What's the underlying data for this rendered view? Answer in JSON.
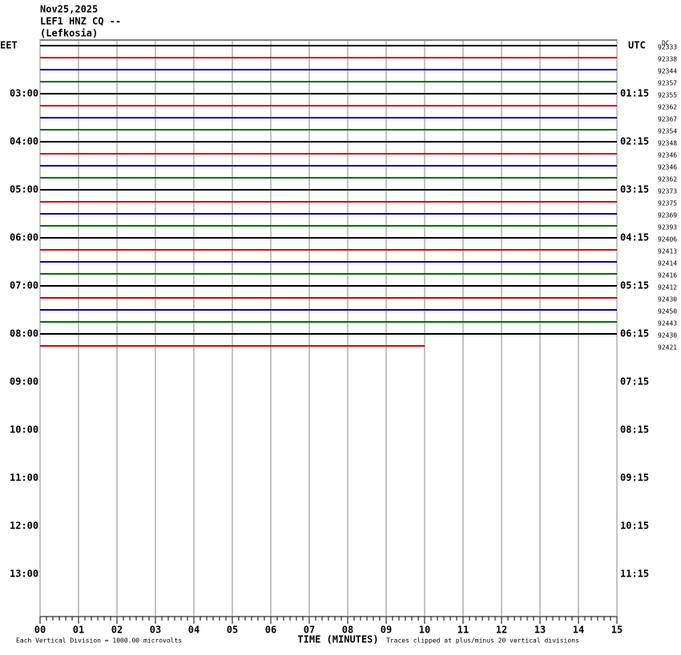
{
  "chart_data": {
    "type": "helicorder",
    "title_lines": [
      "Nov25,2025",
      "LEF1 HNZ CQ --",
      "(Lefkosia)"
    ],
    "left_axis_label": "EET",
    "right_axis_label": "UTC",
    "dc_header": "DC",
    "x_label": "TIME (MINUTES)",
    "scale_note": "Each Vertical Division = 1000.00 microvolts",
    "clip_note": "Traces clipped at plus/minus 20 vertical divisions",
    "xlim": [
      0,
      15
    ],
    "xticks": [
      {
        "value": 0,
        "label": "00"
      },
      {
        "value": 1,
        "label": "01"
      },
      {
        "value": 2,
        "label": "02"
      },
      {
        "value": 3,
        "label": "03"
      },
      {
        "value": 4,
        "label": "04"
      },
      {
        "value": 5,
        "label": "05"
      },
      {
        "value": 6,
        "label": "06"
      },
      {
        "value": 7,
        "label": "07"
      },
      {
        "value": 8,
        "label": "08"
      },
      {
        "value": 9,
        "label": "09"
      },
      10,
      11,
      12,
      13,
      14,
      15
    ],
    "local_times": [
      "03:00",
      "04:00",
      "05:00",
      "06:00",
      "07:00",
      "08:00",
      "09:00",
      "10:00",
      "11:00",
      "12:00",
      "13:00"
    ],
    "utc_times": [
      "01:15",
      "02:15",
      "03:15",
      "04:15",
      "05:15",
      "06:15",
      "07:15",
      "08:15",
      "09:15",
      "10:15",
      "11:15"
    ],
    "trace_colors": [
      "#000000",
      "#e00000",
      "#0000c0",
      "#007000"
    ],
    "dc_values": [
      92333,
      92338,
      92344,
      92357,
      92355,
      92362,
      92367,
      92354,
      92348,
      92346,
      92346,
      92362,
      92373,
      92375,
      92369,
      92393,
      92406,
      92413,
      92414,
      92416,
      92412,
      92430,
      92450,
      92443,
      92430,
      92421
    ],
    "last_trace_end": 10
  }
}
